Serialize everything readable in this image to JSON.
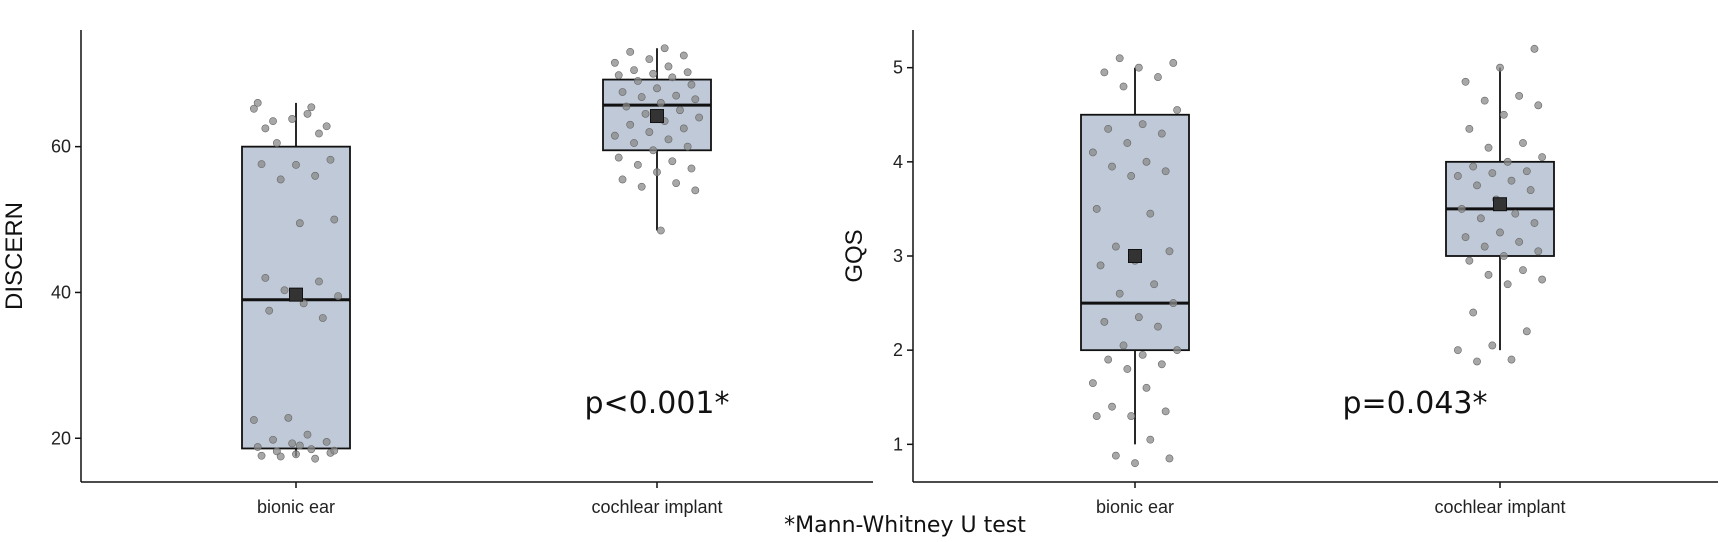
{
  "chart_data": [
    {
      "type": "box",
      "categories": [
        "bionic ear",
        "cochlear implant"
      ],
      "ylabel": "DISCERN",
      "xlabel": "",
      "ylim": [
        14,
        76
      ],
      "yticks": [
        20,
        40,
        60
      ],
      "annotation": "p<0.001*",
      "boxes": [
        {
          "whisker_low": 17.5,
          "q1": 18.6,
          "median": 39,
          "q3": 60,
          "whisker_high": 66,
          "mean": 39.7
        },
        {
          "whisker_low": 48.5,
          "q1": 59.5,
          "median": 65.7,
          "q3": 69.2,
          "whisker_high": 73.5,
          "mean": 64.2
        }
      ],
      "points": [
        [
          65.2,
          64.5,
          63.5,
          62.8,
          63.8,
          66.0,
          65.4,
          60.5,
          58.2,
          57.5,
          57.6,
          56.0,
          55.5,
          50.0,
          49.5,
          42.0,
          41.5,
          40.3,
          39.5,
          38.5,
          37.5,
          36.5,
          22.8,
          22.5,
          20.5,
          19.8,
          19.5,
          19.3,
          18.8,
          18.5,
          18.2,
          18.0,
          17.8,
          17.6,
          17.2,
          17.5,
          18.3,
          19.0,
          62.5,
          61.8
        ],
        [
          73.5,
          73.0,
          72.5,
          72.0,
          71.5,
          71.0,
          70.5,
          70.2,
          70.0,
          69.8,
          69.5,
          69.0,
          68.5,
          68.0,
          67.5,
          67.0,
          66.8,
          66.5,
          66.0,
          65.5,
          65.0,
          64.5,
          64.0,
          63.5,
          63.0,
          62.5,
          62.0,
          61.5,
          61.0,
          60.5,
          60.0,
          59.5,
          58.5,
          58.0,
          57.5,
          57.0,
          56.5,
          55.5,
          55.0,
          54.5,
          54.0,
          48.5
        ]
      ]
    },
    {
      "type": "box",
      "categories": [
        "bionic ear",
        "cochlear implant"
      ],
      "ylabel": "GQS",
      "xlabel": "",
      "ylim": [
        0.6,
        5.4
      ],
      "yticks": [
        1,
        2,
        3,
        4,
        5
      ],
      "annotation": "p=0.043*",
      "boxes": [
        {
          "whisker_low": 1,
          "q1": 2,
          "median": 2.5,
          "q3": 4.5,
          "whisker_high": 5,
          "mean": 3.0
        },
        {
          "whisker_low": 2,
          "q1": 3,
          "median": 3.5,
          "q3": 4,
          "whisker_high": 5,
          "mean": 3.55
        }
      ],
      "points": [
        [
          5.1,
          5.05,
          5.0,
          4.95,
          4.9,
          4.8,
          4.55,
          4.4,
          4.35,
          4.3,
          4.2,
          4.1,
          4.0,
          3.95,
          3.9,
          3.85,
          3.5,
          3.45,
          3.1,
          3.05,
          2.95,
          2.9,
          2.7,
          2.6,
          2.5,
          2.35,
          2.3,
          2.25,
          2.05,
          2.0,
          1.95,
          1.9,
          1.85,
          1.8,
          1.65,
          1.6,
          1.4,
          1.35,
          1.3,
          1.3,
          1.05,
          0.88,
          0.85,
          0.8
        ],
        [
          5.2,
          5.0,
          4.85,
          4.7,
          4.65,
          4.6,
          4.5,
          4.35,
          4.2,
          4.15,
          4.05,
          4.0,
          3.95,
          3.9,
          3.88,
          3.85,
          3.8,
          3.75,
          3.7,
          3.6,
          3.5,
          3.45,
          3.4,
          3.35,
          3.25,
          3.2,
          3.15,
          3.1,
          3.05,
          3.0,
          2.95,
          2.85,
          2.8,
          2.75,
          2.7,
          2.4,
          2.2,
          2.05,
          2.0,
          1.9,
          1.88
        ]
      ]
    }
  ],
  "footnote": "*Mann-Whitney U test",
  "colors": {
    "box_fill": "#c0c9d8",
    "box_stroke": "#111111",
    "point_fill": "#8a8a8a",
    "mean_marker": "#333333",
    "axis": "#111111"
  }
}
